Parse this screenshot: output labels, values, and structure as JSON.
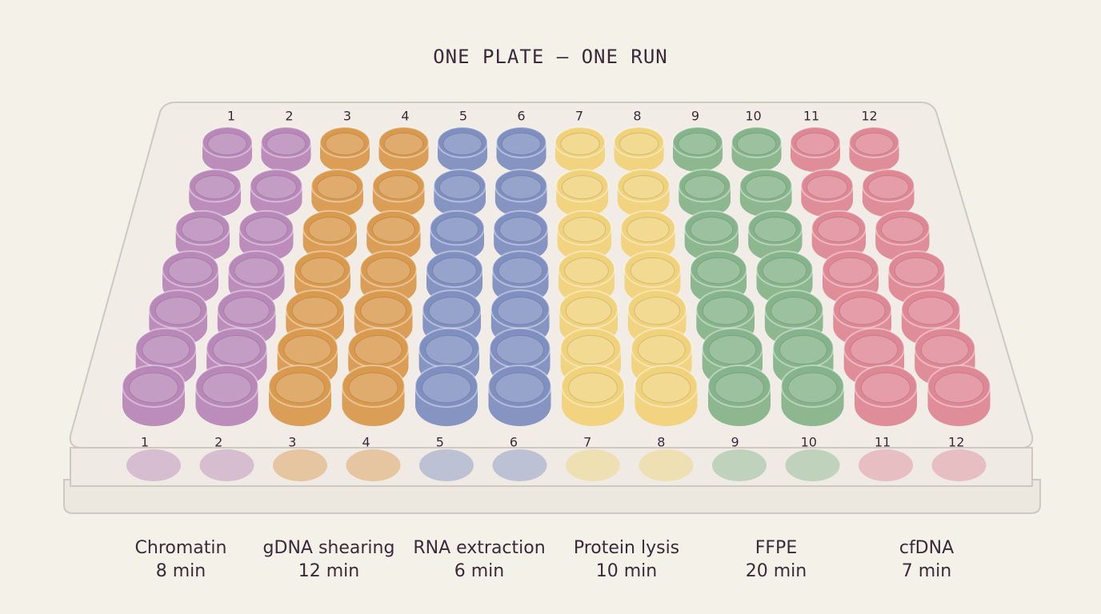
{
  "title": "ONE PLATE — ONE RUN",
  "columns": [
    "1",
    "2",
    "3",
    "4",
    "5",
    "6",
    "7",
    "8",
    "9",
    "10",
    "11",
    "12"
  ],
  "groups": [
    {
      "name": "Chromatin",
      "time": "8 min",
      "color": "#b888b8"
    },
    {
      "name": "gDNA shearing",
      "time": "12 min",
      "color": "#d99a4e"
    },
    {
      "name": "RNA extraction",
      "time": "6 min",
      "color": "#7f8fc0"
    },
    {
      "name": "Protein lysis",
      "time": "10 min",
      "color": "#f0d27a"
    },
    {
      "name": "FFPE",
      "time": "20 min",
      "color": "#86b48a"
    },
    {
      "name": "cfDNA",
      "time": "7 min",
      "color": "#de8896"
    }
  ]
}
